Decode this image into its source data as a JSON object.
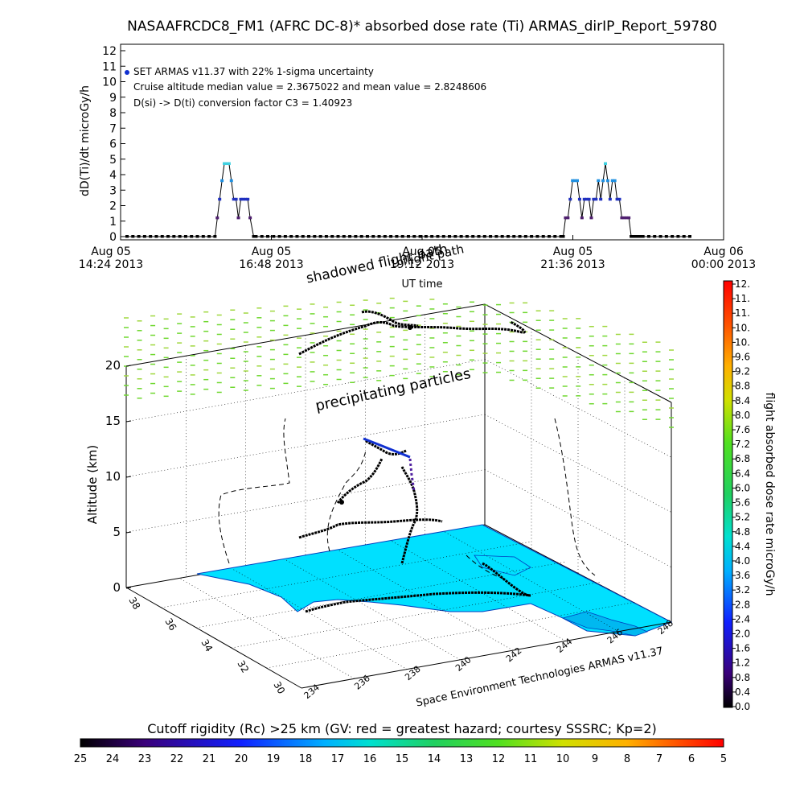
{
  "chart_data": [
    {
      "type": "line",
      "title": "NASAAFRCDC8_FM1 (AFRC DC-8)* absorbed dose rate (Ti) ARMAS_dirIP_Report_59780",
      "ylabel": "dD(Ti)/dt microGy/h",
      "xlabel": "UT time",
      "ylim": [
        0,
        12
      ],
      "yticks": [
        "0",
        "1",
        "2",
        "3",
        "4",
        "5",
        "6",
        "7",
        "8",
        "9",
        "10",
        "11",
        "12"
      ],
      "xticks": [
        {
          "date": "Aug 05",
          "time": "14:24 2013"
        },
        {
          "date": "Aug 05",
          "time": "16:48 2013"
        },
        {
          "date": "Aug 05",
          "time": "19:12 2013"
        },
        {
          "date": "Aug 05",
          "time": "21:36 2013"
        },
        {
          "date": "Aug 06",
          "time": "00:00 2013"
        }
      ],
      "annotations": [
        "SET ARMAS v11.37 with 22% 1-sigma uncertainty",
        "Cruise altitude median value = 2.3675022 and mean value = 2.8248606",
        "D(si) -> D(ti) conversion factor C3 = 1.40923"
      ],
      "series": [
        {
          "x_minutes_after_1424": [
            0,
            5,
            10,
            15,
            20,
            25,
            30,
            35,
            40,
            45,
            50,
            55,
            60,
            65,
            70,
            75,
            77,
            79,
            81,
            83,
            85,
            87,
            89,
            91,
            93,
            95,
            97,
            99,
            101,
            103,
            105,
            108,
            110,
            115,
            120,
            125,
            130,
            135,
            140,
            145,
            150,
            155,
            160,
            165,
            170,
            175,
            180,
            185,
            190,
            195,
            200,
            205,
            210,
            215,
            220,
            225,
            230,
            235,
            240,
            245,
            250,
            255,
            260,
            265,
            270,
            275,
            280,
            285,
            290,
            295,
            300,
            305,
            310,
            315,
            320,
            325,
            330,
            335,
            340,
            345,
            350,
            355,
            360,
            365,
            370,
            372,
            374,
            376,
            378,
            380,
            382,
            384,
            386,
            388,
            390,
            392,
            394,
            396,
            398,
            400,
            402,
            404,
            406,
            408,
            410,
            412,
            414,
            416,
            418,
            420,
            422,
            424,
            426,
            428,
            430,
            432,
            434,
            436,
            438,
            440,
            445,
            450,
            455,
            460,
            465,
            470,
            475,
            480
          ],
          "values": [
            0,
            0,
            0,
            0,
            0,
            0,
            0,
            0,
            0,
            0,
            0,
            0,
            0,
            0,
            0,
            0,
            1.2,
            2.4,
            3.6,
            4.7,
            4.7,
            4.7,
            3.6,
            2.4,
            2.4,
            1.2,
            2.4,
            2.4,
            2.4,
            2.4,
            1.2,
            0,
            0,
            0,
            0,
            0,
            0,
            0,
            0,
            0,
            0,
            0,
            0,
            0,
            0,
            0,
            0,
            0,
            0,
            0,
            0,
            0,
            0,
            0,
            0,
            0,
            0,
            0,
            0,
            0,
            0,
            0,
            0,
            0,
            0,
            0,
            0,
            0,
            0,
            0,
            0,
            0,
            0,
            0,
            0,
            0,
            0,
            0,
            0,
            0,
            0,
            0,
            0,
            0,
            0,
            0,
            1.2,
            1.2,
            2.4,
            3.6,
            3.6,
            3.6,
            2.4,
            1.2,
            2.4,
            2.4,
            2.4,
            1.2,
            2.4,
            2.4,
            3.6,
            2.4,
            3.6,
            4.7,
            3.6,
            2.4,
            3.6,
            3.6,
            2.4,
            2.4,
            1.2,
            1.2,
            1.2,
            1.2,
            0,
            0,
            0,
            0,
            0,
            0,
            0,
            0,
            0,
            0,
            0,
            0,
            0,
            0,
            0,
            0,
            0,
            0,
            0,
            0,
            0
          ]
        }
      ]
    },
    {
      "type": "scatter",
      "zlabel": "Altitude (km)",
      "zticks": [
        "0",
        "5",
        "10",
        "15",
        "20"
      ],
      "lat_ticks": [
        "30",
        "32",
        "34",
        "36",
        "38"
      ],
      "lon_ticks": [
        "234",
        "236",
        "238",
        "240",
        "242",
        "244",
        "246",
        "248"
      ],
      "credit": "Space Environment Technologies ARMAS v11.37",
      "labels": [
        "shadowed flight path",
        "precipitating particles"
      ],
      "shadowed_path_label_extra": "flight path"
    },
    {
      "type": "heatmap",
      "colorbar_label": "flight absorbed dose rate microGy/h",
      "colorbar_ticks": [
        "0.0",
        "0.4",
        "0.8",
        "1.2",
        "1.6",
        "2.0",
        "2.4",
        "2.8",
        "3.2",
        "3.6",
        "4.0",
        "4.4",
        "4.8",
        "5.2",
        "5.6",
        "6.0",
        "6.4",
        "6.8",
        "7.2",
        "7.6",
        "8.0",
        "8.4",
        "8.8",
        "9.2",
        "9.6",
        "10.",
        "10.",
        "11.",
        "11.",
        "12."
      ]
    },
    {
      "type": "heatmap",
      "colorbar_label": "Cutoff rigidity (Rc) >25 km (GV: red = greatest hazard; courtesy SSSRC; Kp=2)",
      "colorbar_ticks": [
        "25",
        "24",
        "23",
        "22",
        "21",
        "20",
        "19",
        "18",
        "17",
        "16",
        "15",
        "14",
        "13",
        "12",
        "11",
        "10",
        "9",
        "8",
        "7",
        "6",
        "5"
      ]
    }
  ],
  "colors": {
    "surface": "#00e0ff",
    "precip": "#80d830",
    "path": "#000000",
    "dashed": "#000000"
  }
}
